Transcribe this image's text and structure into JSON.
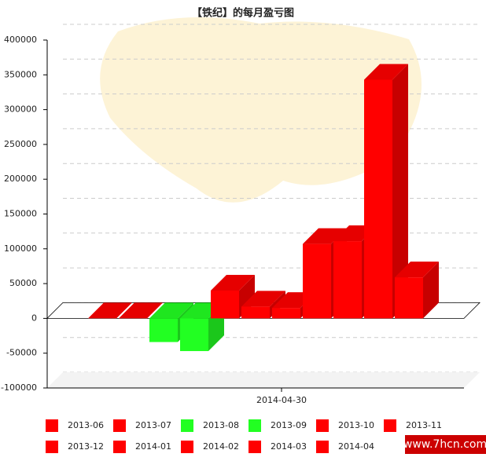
{
  "chart_data": {
    "type": "bar3d",
    "title": "【铁纪】的每月盈亏图",
    "categories": [
      "2014-04-30"
    ],
    "series": [
      {
        "name": "2013-06",
        "color": "#ff0000",
        "values": [
          0
        ]
      },
      {
        "name": "2013-07",
        "color": "#ff0000",
        "values": [
          0
        ]
      },
      {
        "name": "2013-08",
        "color": "#22ff22",
        "values": [
          -34000
        ]
      },
      {
        "name": "2013-09",
        "color": "#22ff22",
        "values": [
          -47000
        ]
      },
      {
        "name": "2013-10",
        "color": "#ff0000",
        "values": [
          40000
        ]
      },
      {
        "name": "2013-11",
        "color": "#ff0000",
        "values": [
          17000
        ]
      },
      {
        "name": "2013-12",
        "color": "#ff0000",
        "values": [
          15000
        ]
      },
      {
        "name": "2014-01",
        "color": "#ff0000",
        "values": [
          107000
        ]
      },
      {
        "name": "2014-02",
        "color": "#ff0000",
        "values": [
          111000
        ]
      },
      {
        "name": "2014-03",
        "color": "#ff0000",
        "values": [
          343000
        ]
      },
      {
        "name": "2014-04",
        "color": "#ff0000",
        "values": [
          59000
        ]
      }
    ],
    "ylim": [
      -100000,
      400000
    ],
    "yticks": [
      -100000,
      -50000,
      0,
      50000,
      100000,
      150000,
      200000,
      250000,
      300000,
      350000,
      400000
    ],
    "grid": true,
    "watermark": "www.7hcn.com"
  }
}
